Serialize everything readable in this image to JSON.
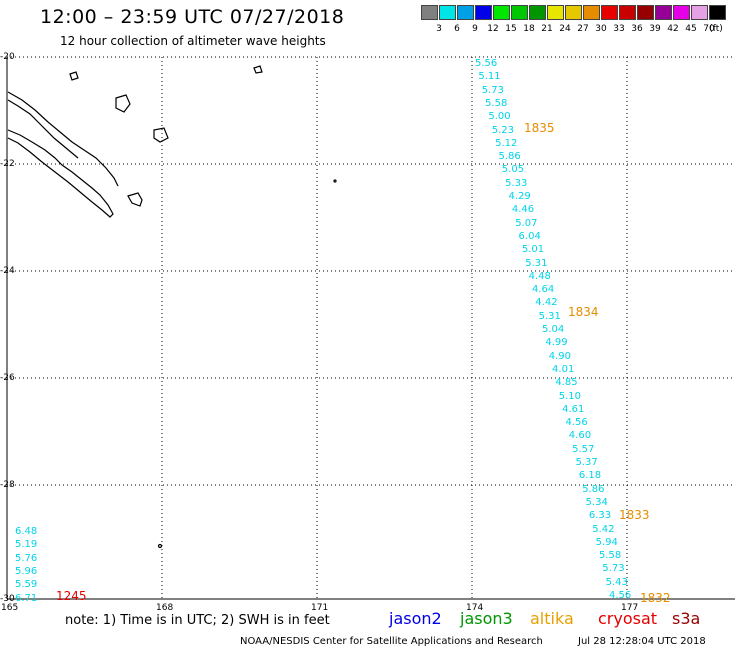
{
  "header": {
    "title": "12:00 – 23:59 UTC 07/27/2018",
    "subtitle": "12 hour collection of altimeter wave heights"
  },
  "legend": {
    "colors": [
      "#808080",
      "#00e6e6",
      "#00a0e6",
      "#0000e6",
      "#00e600",
      "#00c800",
      "#009600",
      "#e6e600",
      "#e6c800",
      "#e68c00",
      "#e60000",
      "#c80000",
      "#960000",
      "#960096",
      "#e600e6",
      "#e6a0e6",
      "#000000"
    ],
    "levels": [
      "3",
      "6",
      "9",
      "12",
      "15",
      "18",
      "21",
      "24",
      "27",
      "30",
      "33",
      "36",
      "39",
      "42",
      "45",
      "70",
      "(ft)"
    ]
  },
  "map": {
    "lat_labels": [
      "-20",
      "-22",
      "-24",
      "-26",
      "-28",
      "-30"
    ],
    "lon_labels": [
      "165",
      "168",
      "171",
      "174",
      "177"
    ]
  },
  "tracks": [
    {
      "color": "#00d4e8",
      "values": [
        "5.56",
        "5.11",
        "5.73",
        "5.58",
        "5.00",
        "5.23",
        "5.12",
        "5.86",
        "5.05",
        "5.33",
        "4.29",
        "4.46",
        "5.07",
        "6.04",
        "5.01",
        "5.31",
        "4.48",
        "4.64",
        "4.42",
        "5.31",
        "5.04",
        "4.99",
        "4.90",
        "4.01",
        "4.85",
        "5.10",
        "4.61",
        "4.56",
        "4.60",
        "5.57",
        "5.37",
        "6.18",
        "5.86",
        "5.34",
        "6.33",
        "5.42",
        "5.94",
        "5.58",
        "5.73",
        "5.43",
        "4.56"
      ]
    },
    {
      "color": "#00d4e8",
      "values": [
        "6.48",
        "5.19",
        "5.76",
        "5.96",
        "5.59",
        "6.71"
      ]
    }
  ],
  "time_labels": [
    {
      "text": "1835",
      "color": "#e68c00"
    },
    {
      "text": "1834",
      "color": "#e68c00"
    },
    {
      "text": "1833",
      "color": "#e68c00"
    },
    {
      "text": "1832",
      "color": "#e68c00"
    },
    {
      "text": "1245",
      "color": "#e60000"
    }
  ],
  "footer": {
    "note": "note: 1) Time is in UTC; 2) SWH is in feet",
    "satellites": [
      {
        "name": "jason2",
        "color": "#0000e6"
      },
      {
        "name": "jason3",
        "color": "#009600"
      },
      {
        "name": "altika",
        "color": "#e6a000"
      },
      {
        "name": "cryosat",
        "color": "#e60000"
      },
      {
        "name": "s3a",
        "color": "#960000"
      }
    ],
    "credit": "NOAA/NESDIS Center for Satellite Applications and Research",
    "timestamp": "Jul 28 12:28:04 UTC 2018"
  }
}
